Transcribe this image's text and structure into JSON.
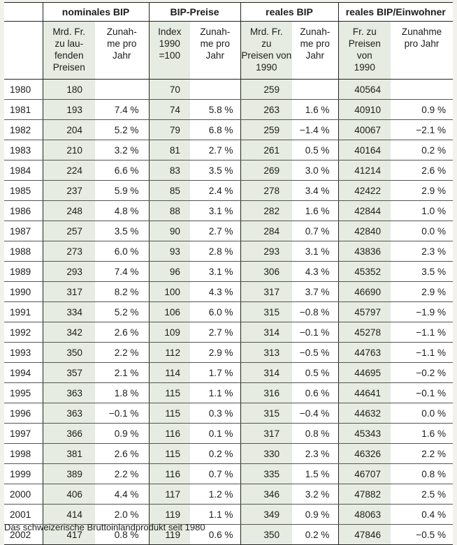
{
  "groups": [
    "nominales BIP",
    "BIP-Preise",
    "reales BIP",
    "reales BIP/Einwohner"
  ],
  "subheaders": [
    [
      "Mrd. Fr.",
      "zu lau-",
      "fenden",
      "Preisen"
    ],
    [
      "Zunah-",
      "me pro",
      "Jahr"
    ],
    [
      "Index",
      "1990",
      "=100"
    ],
    [
      "Zunah-",
      "me pro",
      "Jahr"
    ],
    [
      "Mrd. Fr.",
      "zu",
      "Preisen von",
      "1990"
    ],
    [
      "Zunah-",
      "me pro",
      "Jahr"
    ],
    [
      "Fr. zu",
      "Preisen",
      "von",
      "1990"
    ],
    [
      "Zunahme",
      "pro Jahr"
    ]
  ],
  "rows": [
    [
      "1980",
      "180",
      "",
      "70",
      "",
      "259",
      "",
      "40564",
      ""
    ],
    [
      "1981",
      "193",
      "7.4 %",
      "74",
      "5.8 %",
      "263",
      "1.6 %",
      "40910",
      "0.9 %"
    ],
    [
      "1982",
      "204",
      "5.2 %",
      "79",
      "6.8 %",
      "259",
      "−1.4 %",
      "40067",
      "−2.1 %"
    ],
    [
      "1983",
      "210",
      "3.2 %",
      "81",
      "2.7 %",
      "261",
      "0.5 %",
      "40164",
      "0.2 %"
    ],
    [
      "1984",
      "224",
      "6.6 %",
      "83",
      "3.5 %",
      "269",
      "3.0 %",
      "41214",
      "2.6 %"
    ],
    [
      "1985",
      "237",
      "5.9 %",
      "85",
      "2.4 %",
      "278",
      "3.4 %",
      "42422",
      "2.9 %"
    ],
    [
      "1986",
      "248",
      "4.8 %",
      "88",
      "3.1 %",
      "282",
      "1.6 %",
      "42844",
      "1.0 %"
    ],
    [
      "1987",
      "257",
      "3.5 %",
      "90",
      "2.7 %",
      "284",
      "0.7 %",
      "42840",
      "0.0 %"
    ],
    [
      "1988",
      "273",
      "6.0 %",
      "93",
      "2.8 %",
      "293",
      "3.1 %",
      "43836",
      "2.3 %"
    ],
    [
      "1989",
      "293",
      "7.4 %",
      "96",
      "3.1 %",
      "306",
      "4.3 %",
      "45352",
      "3.5 %"
    ],
    [
      "1990",
      "317",
      "8.2 %",
      "100",
      "4.3 %",
      "317",
      "3.7 %",
      "46690",
      "2.9 %"
    ],
    [
      "1991",
      "334",
      "5.2 %",
      "106",
      "6.0 %",
      "315",
      "−0.8 %",
      "45797",
      "−1.9 %"
    ],
    [
      "1992",
      "342",
      "2.6 %",
      "109",
      "2.7 %",
      "314",
      "−0.1 %",
      "45278",
      "−1.1 %"
    ],
    [
      "1993",
      "350",
      "2.2 %",
      "112",
      "2.9 %",
      "313",
      "−0.5 %",
      "44763",
      "−1.1 %"
    ],
    [
      "1994",
      "357",
      "2.1 %",
      "114",
      "1.7 %",
      "314",
      "0.5 %",
      "44695",
      "−0.2 %"
    ],
    [
      "1995",
      "363",
      "1.8 %",
      "115",
      "1.1 %",
      "316",
      "0.6 %",
      "44641",
      "−0.1 %"
    ],
    [
      "1996",
      "363",
      "−0.1 %",
      "115",
      "0.3 %",
      "315",
      "−0.4 %",
      "44632",
      "0.0 %"
    ],
    [
      "1997",
      "366",
      "0.9 %",
      "116",
      "0.1 %",
      "317",
      "0.8 %",
      "45343",
      "1.6 %"
    ],
    [
      "1998",
      "381",
      "2.6 %",
      "115",
      "0.2 %",
      "330",
      "2.3 %",
      "46326",
      "2.2 %"
    ],
    [
      "1999",
      "389",
      "2.2 %",
      "116",
      "0.7 %",
      "335",
      "1.5 %",
      "46707",
      "0.8 %"
    ],
    [
      "2000",
      "406",
      "4.4 %",
      "117",
      "1.2 %",
      "346",
      "3.2 %",
      "47882",
      "2.5 %"
    ],
    [
      "2001",
      "414",
      "2.0 %",
      "119",
      "1.1 %",
      "349",
      "0.9 %",
      "48063",
      "0.4 %"
    ],
    [
      "2002",
      "417",
      "0.8 %",
      "119",
      "0.6 %",
      "350",
      "0.2 %",
      "47846",
      "−0.5 %"
    ]
  ],
  "caption": "Das schweizerische Bruttoinlandprodukt seit 1980"
}
